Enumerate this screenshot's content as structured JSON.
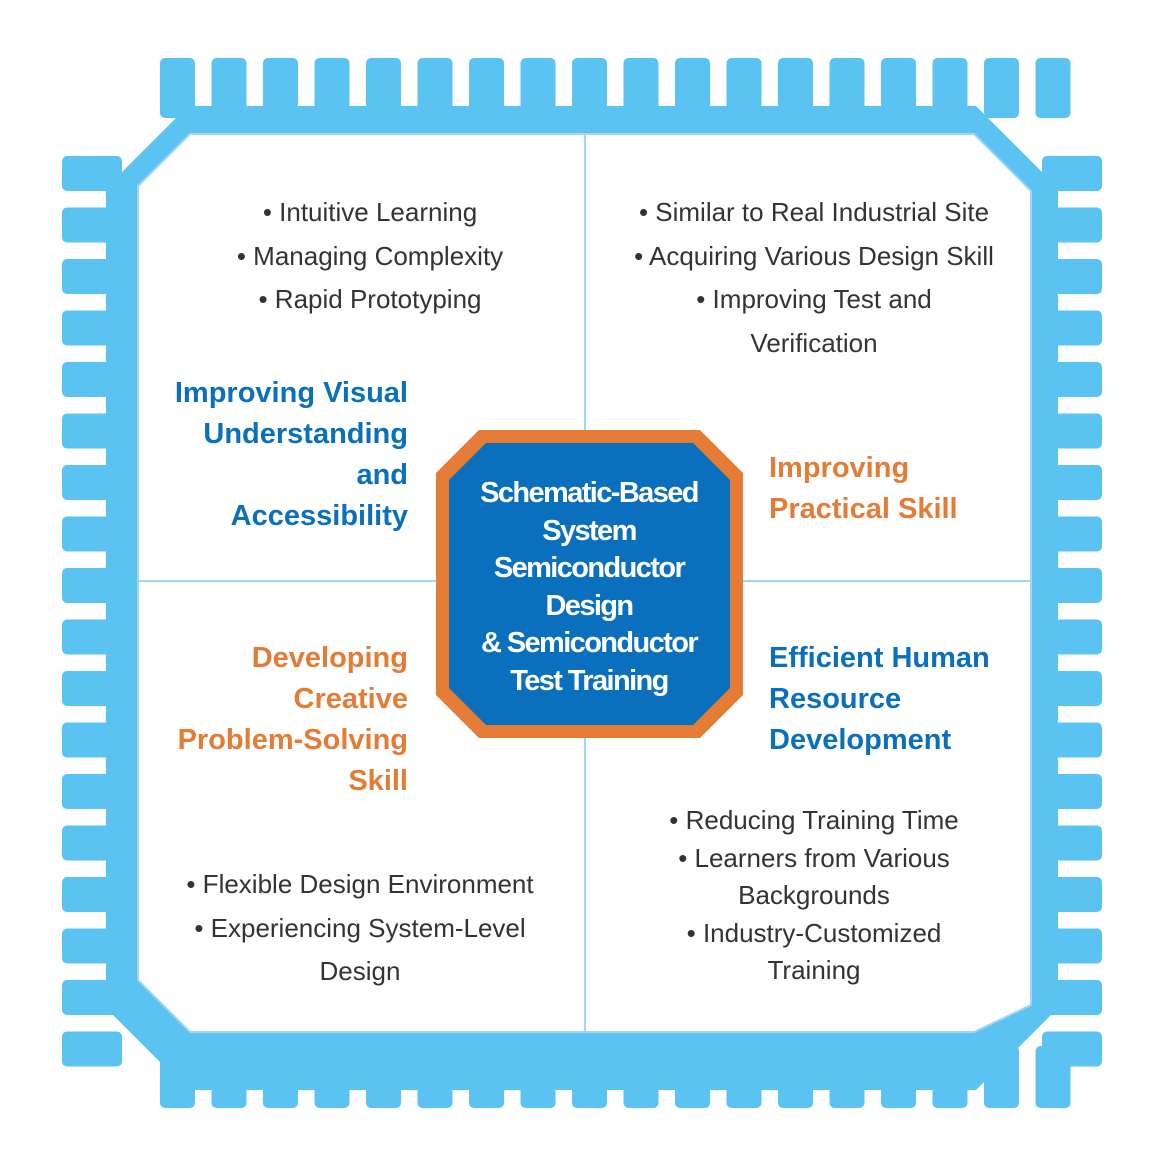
{
  "colors": {
    "chip_frame": "#5bc3f1",
    "chip_inner": "#ffffff",
    "divider": "#9fd7f4",
    "center_fill": "#0a6fbd",
    "center_border": "#e47c36",
    "heading_blue": "#0a6fbd",
    "heading_orange": "#e47c36",
    "body_text": "#333333"
  },
  "center": {
    "lines": [
      "Schematic-Based",
      "System",
      "Semiconductor",
      "Design",
      "& Semiconductor",
      "Test Training"
    ]
  },
  "quadrants": {
    "top_left": {
      "heading_color": "blue",
      "heading_lines": [
        "Improving Visual",
        "Understanding",
        "and",
        "Accessibility"
      ],
      "bullet_lines": [
        "• Intuitive Learning",
        "• Managing Complexity",
        "• Rapid Prototyping"
      ]
    },
    "top_right": {
      "heading_color": "orange",
      "heading_lines": [
        "Improving",
        "Practical Skill"
      ],
      "bullet_lines": [
        "• Similar to Real Industrial Site",
        "• Acquiring Various Design Skill",
        "• Improving Test and",
        "Verification"
      ]
    },
    "bottom_left": {
      "heading_color": "orange",
      "heading_lines": [
        "Developing",
        "Creative",
        "Problem-Solving",
        "Skill"
      ],
      "bullet_lines": [
        "• Flexible Design Environment",
        "• Experiencing System-Level",
        "Design"
      ]
    },
    "bottom_right": {
      "heading_color": "blue",
      "heading_lines": [
        "Efficient Human",
        "Resource",
        "Development"
      ],
      "bullet_lines": [
        "• Reducing Training Time",
        "• Learners from Various",
        "Backgrounds",
        "• Industry-Customized",
        "Training"
      ]
    }
  }
}
